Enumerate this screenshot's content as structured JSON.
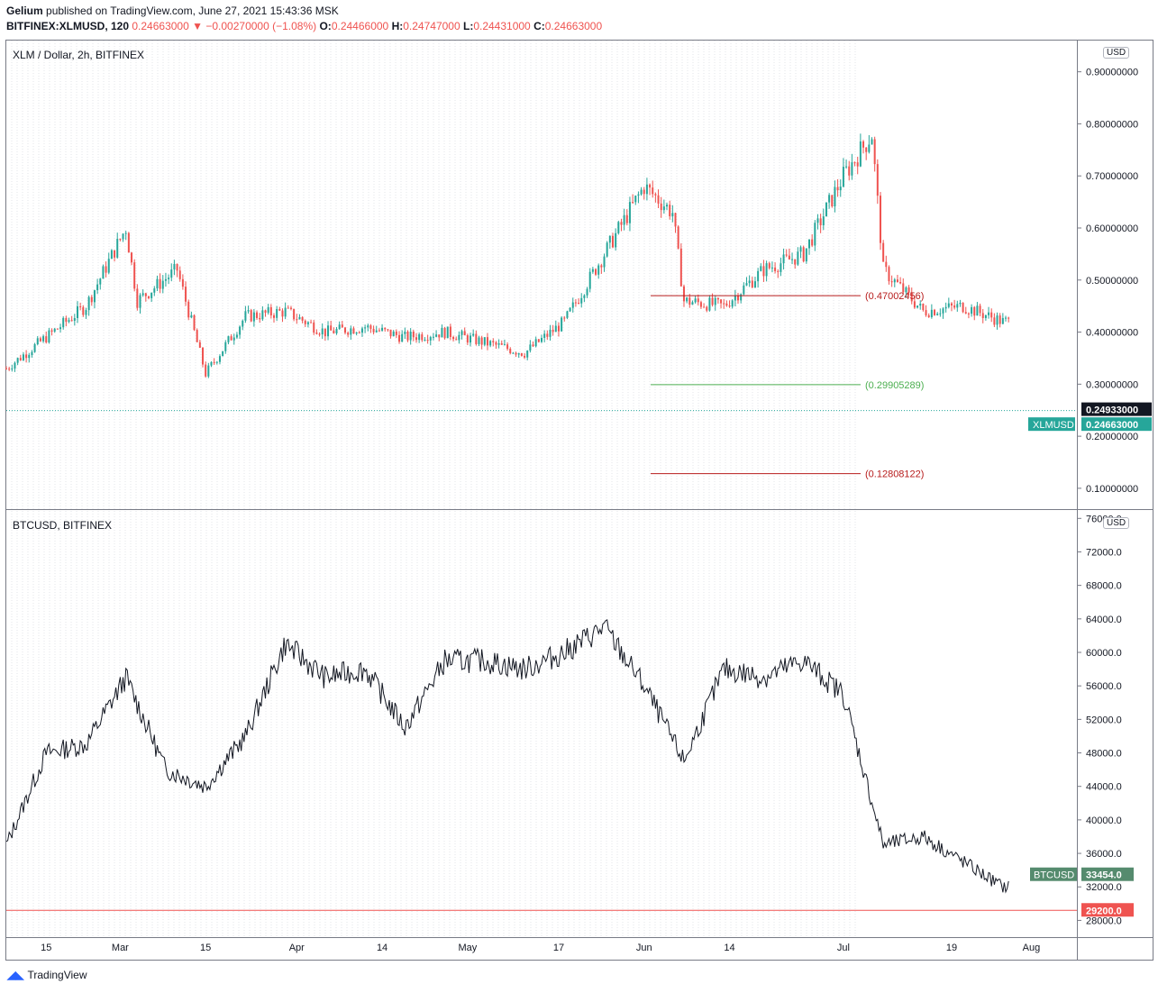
{
  "header": {
    "publisher": "Gelium",
    "published_text": "published on TradingView.com, June 27, 2021 15:43:36 MSK",
    "symbol": "BITFINEX:XLMUSD, 120",
    "last": "0.24663000",
    "change": "−0.00270000 (−1.08%)",
    "o_label": "O:",
    "o": "0.24466000",
    "h_label": "H:",
    "h": "0.24747000",
    "l_label": "L:",
    "l": "0.24431000",
    "c_label": "C:",
    "c": "0.24663000"
  },
  "colors": {
    "up": "#26a69a",
    "down": "#ef5350",
    "btc": "#131722",
    "line_red": "#b71c1c",
    "line_green": "#4caf50",
    "dotted": "#26a69a"
  },
  "footer": {
    "brand": "TradingView"
  },
  "chart_data": [
    {
      "type": "candlestick",
      "title": "XLM / Dollar, 2h, BITFINEX",
      "currency": "USD",
      "ylim": [
        0.06,
        0.96
      ],
      "yticks": [
        "0.90000000",
        "0.80000000",
        "0.70000000",
        "0.60000000",
        "0.50000000",
        "0.40000000",
        "0.30000000",
        "0.20000000",
        "0.10000000"
      ],
      "ytick_values": [
        0.9,
        0.8,
        0.7,
        0.6,
        0.5,
        0.4,
        0.3,
        0.2,
        0.1
      ],
      "series": [
        {
          "name": "XLMUSD",
          "x": [
            0,
            7,
            14,
            21,
            23,
            30,
            35,
            42,
            49,
            56,
            63,
            70,
            77,
            84,
            91,
            98,
            105,
            112,
            117,
            119,
            126,
            133,
            140,
            147,
            152,
            154,
            161,
            168,
            175
          ],
          "values": [
            0.33,
            0.39,
            0.45,
            0.6,
            0.46,
            0.52,
            0.32,
            0.43,
            0.44,
            0.4,
            0.41,
            0.39,
            0.4,
            0.38,
            0.36,
            0.42,
            0.55,
            0.68,
            0.63,
            0.46,
            0.45,
            0.52,
            0.55,
            0.7,
            0.78,
            0.52,
            0.44,
            0.45,
            0.42
          ]
        }
      ],
      "levels": [
        {
          "label": "(0.47002456)",
          "value": 0.47002456,
          "color": "#b71c1c"
        },
        {
          "label": "(0.29905289)",
          "value": 0.29905289,
          "color": "#4caf50"
        },
        {
          "label": "(0.12808122)",
          "value": 0.12808122,
          "color": "#b71c1c"
        }
      ],
      "price_tags": [
        {
          "label": "0.24933000",
          "value": 0.24933,
          "color": "#131722"
        },
        {
          "name": "XLMUSD",
          "label": "0.24663000",
          "value": 0.24663,
          "color": "#26a69a"
        }
      ]
    },
    {
      "type": "line",
      "title": "BTCUSD, BITFINEX",
      "currency": "USD",
      "ylim": [
        26000,
        77000
      ],
      "yticks": [
        "76000.0",
        "72000.0",
        "68000.0",
        "64000.0",
        "60000.0",
        "56000.0",
        "52000.0",
        "48000.0",
        "44000.0",
        "40000.0",
        "36000.0",
        "32000.0",
        "28000.0"
      ],
      "ytick_values": [
        76000,
        72000,
        68000,
        64000,
        60000,
        56000,
        52000,
        48000,
        44000,
        40000,
        36000,
        32000,
        28000
      ],
      "series": [
        {
          "name": "BTCUSD",
          "x": [
            0,
            7,
            14,
            21,
            28,
            35,
            42,
            49,
            56,
            63,
            70,
            77,
            84,
            91,
            98,
            105,
            112,
            119,
            126,
            133,
            140,
            147,
            154,
            161,
            168,
            175
          ],
          "values": [
            37000,
            48000,
            49000,
            57000,
            46000,
            44000,
            50000,
            61000,
            57000,
            58000,
            51000,
            59000,
            59000,
            58000,
            60000,
            63000,
            56000,
            47000,
            58000,
            57000,
            59000,
            55000,
            37000,
            38000,
            35000,
            32000
          ]
        }
      ],
      "price_tags": [
        {
          "name": "BTCUSD",
          "label": "33454.0",
          "value": 33454,
          "color": "#558b6e"
        },
        {
          "label": "29200.0",
          "value": 29200,
          "color": "#ef5350"
        }
      ],
      "support_level": 29200
    }
  ],
  "xaxis": {
    "ticks": [
      "15",
      "Mar",
      "15",
      "Apr",
      "14",
      "May",
      "17",
      "Jun",
      "14",
      "Jul",
      "19",
      "Aug"
    ],
    "tick_days": [
      7,
      20,
      35,
      51,
      66,
      81,
      97,
      112,
      127,
      147,
      166,
      180
    ],
    "day_range": [
      0,
      188
    ]
  }
}
